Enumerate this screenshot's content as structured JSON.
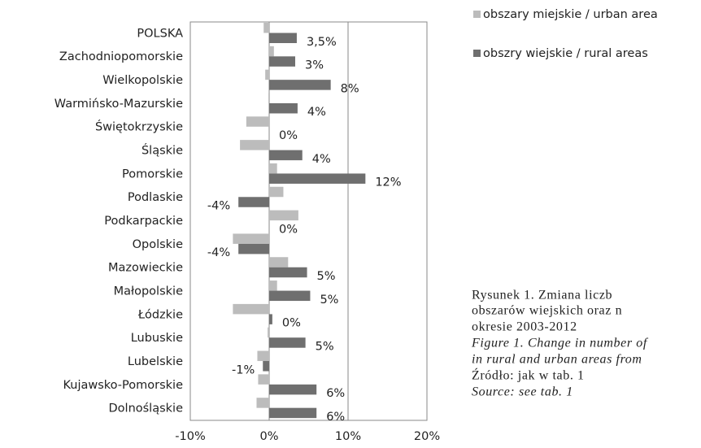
{
  "chart_data": {
    "type": "bar",
    "orientation": "horizontal",
    "categories": [
      "POLSKA",
      "Zachodniopomorskie",
      "Wielkopolskie",
      "Warmińsko-Mazurskie",
      "Świętokrzyskie",
      "Śląskie",
      "Pomorskie",
      "Podlaskie",
      "Podkarpackie",
      "Opolskie",
      "Mazowieckie",
      "Małopolskie",
      "Łódzkie",
      "Lubuskie",
      "Lubelskie",
      "Kujawsko-Pomorskie",
      "Dolnośląskie"
    ],
    "series": [
      {
        "name": "obszary miejskie / urban area",
        "color": "#bcbcbc",
        "values": [
          -0.7,
          0.6,
          -0.5,
          -0.1,
          -2.9,
          -3.7,
          1.0,
          1.8,
          3.7,
          -4.6,
          2.4,
          1.0,
          -4.6,
          -0.2,
          -1.5,
          -1.4,
          -1.6
        ]
      },
      {
        "name": "obszry wiejskie / rural areas",
        "color": "#6f6f6f",
        "values": [
          3.5,
          3.3,
          7.8,
          3.6,
          0,
          4.2,
          12.2,
          -3.9,
          0,
          -3.9,
          4.8,
          5.2,
          0.4,
          4.6,
          -0.8,
          6.0,
          6.0
        ],
        "value_labels": [
          "3,5%",
          "3%",
          "8%",
          "4%",
          "0%",
          "4%",
          "12%",
          "-4%",
          "0%",
          "-4%",
          "5%",
          "5%",
          "0%",
          "5%",
          "-1%",
          "6%",
          "6%"
        ]
      }
    ],
    "xlim": [
      -10,
      20
    ],
    "xticks": [
      {
        "value": -10,
        "label": "-10%"
      },
      {
        "value": 0,
        "label": "0%"
      },
      {
        "value": 10,
        "label": "10%"
      },
      {
        "value": 20,
        "label": "20%"
      }
    ],
    "grid": true,
    "legend": "top-right",
    "caption": [
      "Rysunek 1. Zmiana liczb",
      "obszarów wiejskich oraz n",
      "okresie 2003-2012",
      "Figure 1. Change in number of",
      "in rural and urban areas from",
      "Źródło: jak w tab. 1",
      "Source: see tab. 1"
    ]
  }
}
